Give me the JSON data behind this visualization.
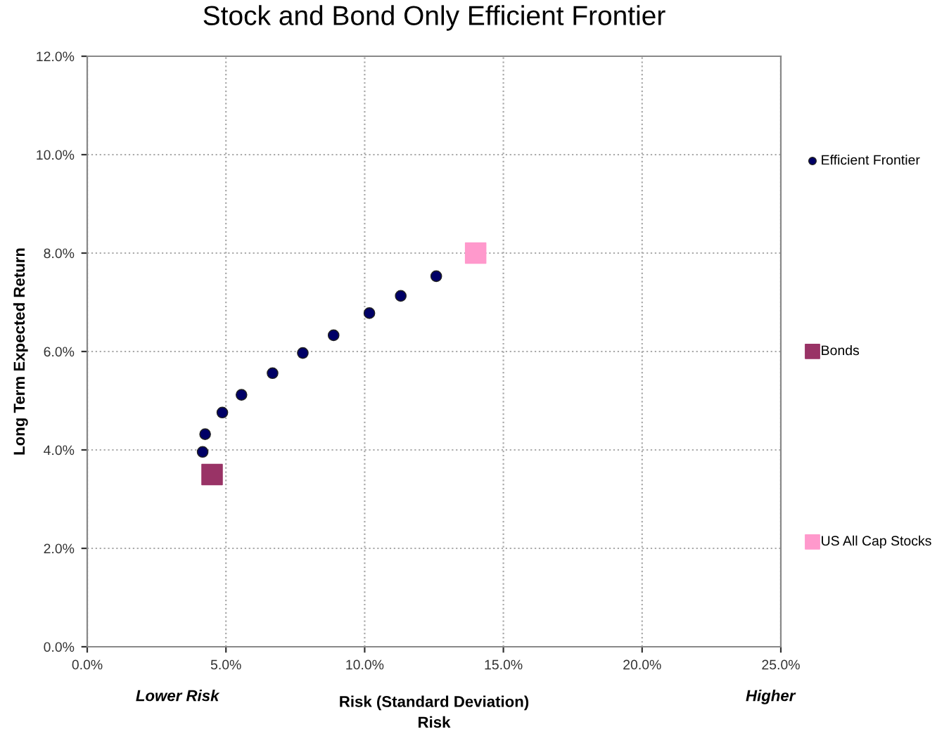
{
  "chart_data": {
    "type": "scatter",
    "title": "Stock and Bond Only Efficient Frontier",
    "xlabel": "Risk (Standard Deviation)",
    "ylabel": "Long Term Expected Return",
    "annotations": [
      "Lower Risk",
      "Higher",
      "Risk"
    ],
    "series": [
      {
        "name": "Efficient Frontier",
        "color": "#000066",
        "marker": "circle",
        "x": [
          4.16,
          4.25,
          4.87,
          5.56,
          6.68,
          7.77,
          8.88,
          10.17,
          11.3,
          12.58
        ],
        "values": [
          3.96,
          4.32,
          4.76,
          5.12,
          5.56,
          5.97,
          6.33,
          6.78,
          7.13,
          7.53
        ]
      },
      {
        "name": "Bonds",
        "color": "#993366",
        "marker": "square",
        "x": [
          4.5
        ],
        "values": [
          3.5
        ]
      },
      {
        "name": "US All Cap Stocks",
        "color": "#ff99cc",
        "marker": "square",
        "x": [
          14.0
        ],
        "values": [
          8.0
        ]
      }
    ],
    "xlim": [
      0,
      25
    ],
    "xticks": [
      {
        "value": 0,
        "label": "0.0%"
      },
      {
        "value": 5,
        "label": "5.0%"
      },
      {
        "value": 10,
        "label": "10.0%"
      },
      {
        "value": 15,
        "label": "15.0%"
      },
      {
        "value": 20,
        "label": "20.0%"
      },
      {
        "value": 25,
        "label": "25.0%"
      }
    ],
    "ylim": [
      0,
      12
    ],
    "yticks": [
      {
        "value": 0,
        "label": "0.0%"
      },
      {
        "value": 2,
        "label": "2.0%"
      },
      {
        "value": 4,
        "label": "4.0%"
      },
      {
        "value": 6,
        "label": "6.0%"
      },
      {
        "value": 8,
        "label": "8.0%"
      },
      {
        "value": 10,
        "label": "10.0%"
      },
      {
        "value": 12,
        "label": "12.0%"
      }
    ],
    "grid": true,
    "legend": "right"
  }
}
